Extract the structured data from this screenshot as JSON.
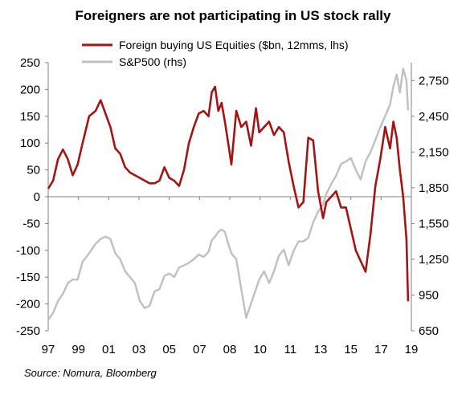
{
  "title": "Foreigners are not participating  in US stock rally",
  "source": "Source: Nomura, Bloomberg",
  "colors": {
    "foreign": "#a31515",
    "sp500": "#c0c0c0",
    "axis": "#808080"
  },
  "chart_data": {
    "type": "line",
    "title": "Foreigners are not participating  in US stock rally",
    "legend_position": "top-right",
    "x_tick_labels": [
      "97",
      "99",
      "01",
      "03",
      "05",
      "07",
      "08",
      "10",
      "11",
      "13",
      "15",
      "17",
      "19"
    ],
    "x_range": [
      1997.0,
      2019.2
    ],
    "y_left": {
      "ylim": [
        -250,
        250
      ],
      "ticks": [
        250,
        200,
        150,
        100,
        50,
        0,
        -50,
        -100,
        -150,
        -200,
        -250
      ]
    },
    "y_right": {
      "ylim": [
        650,
        2900
      ],
      "ticks": [
        "2,750",
        "2,450",
        "2,150",
        "1,850",
        "1,550",
        "1,250",
        "950",
        "650"
      ],
      "tick_values": [
        2750,
        2450,
        2150,
        1850,
        1550,
        1250,
        950,
        650
      ]
    },
    "series": [
      {
        "name": "Foreign buying US Equities ($bn, 12mms, lhs)",
        "axis": "left",
        "x": [
          1997.0,
          1997.3,
          1997.6,
          1997.9,
          1998.2,
          1998.5,
          1998.8,
          1999.1,
          1999.5,
          1999.9,
          2000.2,
          2000.5,
          2000.8,
          2001.1,
          2001.4,
          2001.7,
          2002.0,
          2002.3,
          2002.6,
          2002.9,
          2003.2,
          2003.5,
          2003.8,
          2004.1,
          2004.4,
          2004.7,
          2005.0,
          2005.3,
          2005.6,
          2005.9,
          2006.2,
          2006.5,
          2006.8,
          2007.0,
          2007.2,
          2007.4,
          2007.6,
          2007.8,
          2008.0,
          2008.2,
          2008.5,
          2008.8,
          2009.1,
          2009.4,
          2009.7,
          2009.9,
          2010.2,
          2010.5,
          2010.8,
          2011.1,
          2011.4,
          2011.7,
          2012.0,
          2012.3,
          2012.6,
          2012.9,
          2013.2,
          2013.5,
          2013.8,
          2014.0,
          2014.3,
          2014.6,
          2014.9,
          2015.2,
          2015.5,
          2015.8,
          2016.1,
          2016.4,
          2016.7,
          2017.0,
          2017.3,
          2017.6,
          2017.9,
          2018.1,
          2018.3,
          2018.5,
          2018.7,
          2018.9,
          2019.0
        ],
        "y": [
          15,
          30,
          70,
          88,
          70,
          40,
          60,
          100,
          150,
          160,
          180,
          155,
          130,
          90,
          80,
          55,
          45,
          40,
          35,
          30,
          25,
          25,
          30,
          55,
          35,
          30,
          20,
          50,
          100,
          130,
          155,
          160,
          150,
          195,
          205,
          160,
          175,
          140,
          100,
          60,
          160,
          130,
          140,
          95,
          165,
          120,
          130,
          140,
          115,
          130,
          120,
          65,
          20,
          -20,
          -10,
          110,
          105,
          10,
          -40,
          -10,
          0,
          10,
          -20,
          -20,
          -60,
          -100,
          -120,
          -140,
          -70,
          20,
          70,
          130,
          90,
          140,
          110,
          50,
          0,
          -80,
          -195
        ]
      },
      {
        "name": "S&P500 (rhs)",
        "axis": "right",
        "x": [
          1997.0,
          1997.3,
          1997.6,
          1997.9,
          1998.2,
          1998.5,
          1998.8,
          1999.1,
          1999.5,
          1999.9,
          2000.2,
          2000.5,
          2000.8,
          2001.1,
          2001.4,
          2001.7,
          2002.0,
          2002.3,
          2002.6,
          2002.9,
          2003.2,
          2003.5,
          2003.8,
          2004.1,
          2004.4,
          2004.7,
          2005.0,
          2005.3,
          2005.6,
          2005.9,
          2006.2,
          2006.5,
          2006.8,
          2007.0,
          2007.2,
          2007.4,
          2007.6,
          2007.8,
          2008.0,
          2008.2,
          2008.5,
          2008.8,
          2009.1,
          2009.4,
          2009.7,
          2009.9,
          2010.2,
          2010.5,
          2010.8,
          2011.1,
          2011.4,
          2011.7,
          2012.0,
          2012.3,
          2012.6,
          2012.9,
          2013.2,
          2013.5,
          2013.8,
          2014.0,
          2014.3,
          2014.6,
          2014.9,
          2015.2,
          2015.5,
          2015.8,
          2016.1,
          2016.4,
          2016.7,
          2017.0,
          2017.3,
          2017.6,
          2017.9,
          2018.1,
          2018.3,
          2018.5,
          2018.7,
          2018.9,
          2019.0
        ],
        "y": [
          740,
          800,
          900,
          960,
          1050,
          1080,
          1080,
          1230,
          1300,
          1380,
          1420,
          1440,
          1420,
          1300,
          1250,
          1150,
          1100,
          1050,
          900,
          840,
          860,
          980,
          1000,
          1110,
          1130,
          1100,
          1180,
          1200,
          1220,
          1250,
          1290,
          1270,
          1310,
          1410,
          1440,
          1480,
          1500,
          1480,
          1380,
          1300,
          1250,
          1000,
          760,
          880,
          1000,
          1080,
          1150,
          1050,
          1150,
          1280,
          1330,
          1200,
          1320,
          1400,
          1400,
          1430,
          1560,
          1650,
          1710,
          1800,
          1880,
          1950,
          2050,
          2070,
          2100,
          2000,
          1920,
          2070,
          2150,
          2250,
          2360,
          2450,
          2550,
          2700,
          2800,
          2650,
          2850,
          2750,
          2500
        ]
      }
    ]
  }
}
